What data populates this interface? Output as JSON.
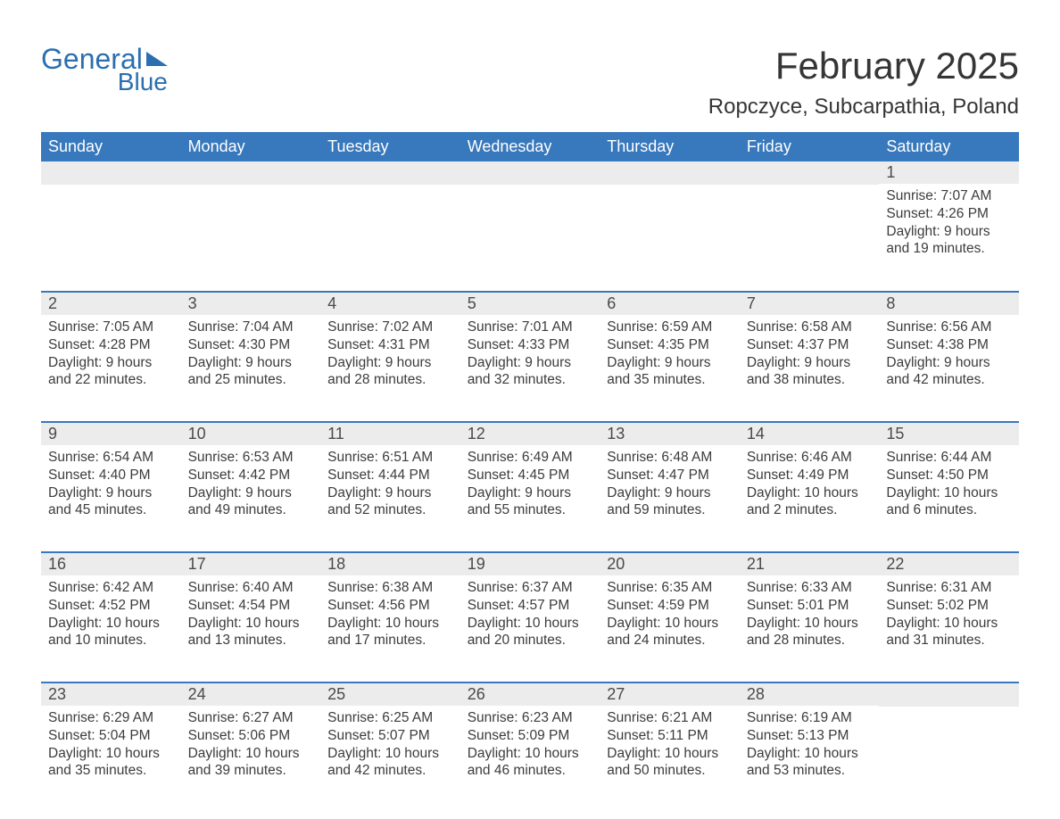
{
  "logo": {
    "general": "General",
    "blue": "Blue"
  },
  "title": "February 2025",
  "location": "Ropczyce, Subcarpathia, Poland",
  "colors": {
    "header_bg": "#3878bc",
    "header_text": "#ffffff",
    "daynum_bg": "#ececec",
    "text": "#3c3c3c",
    "logo": "#2b6fb0"
  },
  "fonts": {
    "title_size": 42,
    "location_size": 24,
    "header_size": 18,
    "daynum_size": 18,
    "body_size": 15.5
  },
  "weekdays": [
    "Sunday",
    "Monday",
    "Tuesday",
    "Wednesday",
    "Thursday",
    "Friday",
    "Saturday"
  ],
  "weeks": [
    [
      null,
      null,
      null,
      null,
      null,
      null,
      {
        "n": "1",
        "sr": "Sunrise: 7:07 AM",
        "ss": "Sunset: 4:26 PM",
        "dl1": "Daylight: 9 hours",
        "dl2": "and 19 minutes."
      }
    ],
    [
      {
        "n": "2",
        "sr": "Sunrise: 7:05 AM",
        "ss": "Sunset: 4:28 PM",
        "dl1": "Daylight: 9 hours",
        "dl2": "and 22 minutes."
      },
      {
        "n": "3",
        "sr": "Sunrise: 7:04 AM",
        "ss": "Sunset: 4:30 PM",
        "dl1": "Daylight: 9 hours",
        "dl2": "and 25 minutes."
      },
      {
        "n": "4",
        "sr": "Sunrise: 7:02 AM",
        "ss": "Sunset: 4:31 PM",
        "dl1": "Daylight: 9 hours",
        "dl2": "and 28 minutes."
      },
      {
        "n": "5",
        "sr": "Sunrise: 7:01 AM",
        "ss": "Sunset: 4:33 PM",
        "dl1": "Daylight: 9 hours",
        "dl2": "and 32 minutes."
      },
      {
        "n": "6",
        "sr": "Sunrise: 6:59 AM",
        "ss": "Sunset: 4:35 PM",
        "dl1": "Daylight: 9 hours",
        "dl2": "and 35 minutes."
      },
      {
        "n": "7",
        "sr": "Sunrise: 6:58 AM",
        "ss": "Sunset: 4:37 PM",
        "dl1": "Daylight: 9 hours",
        "dl2": "and 38 minutes."
      },
      {
        "n": "8",
        "sr": "Sunrise: 6:56 AM",
        "ss": "Sunset: 4:38 PM",
        "dl1": "Daylight: 9 hours",
        "dl2": "and 42 minutes."
      }
    ],
    [
      {
        "n": "9",
        "sr": "Sunrise: 6:54 AM",
        "ss": "Sunset: 4:40 PM",
        "dl1": "Daylight: 9 hours",
        "dl2": "and 45 minutes."
      },
      {
        "n": "10",
        "sr": "Sunrise: 6:53 AM",
        "ss": "Sunset: 4:42 PM",
        "dl1": "Daylight: 9 hours",
        "dl2": "and 49 minutes."
      },
      {
        "n": "11",
        "sr": "Sunrise: 6:51 AM",
        "ss": "Sunset: 4:44 PM",
        "dl1": "Daylight: 9 hours",
        "dl2": "and 52 minutes."
      },
      {
        "n": "12",
        "sr": "Sunrise: 6:49 AM",
        "ss": "Sunset: 4:45 PM",
        "dl1": "Daylight: 9 hours",
        "dl2": "and 55 minutes."
      },
      {
        "n": "13",
        "sr": "Sunrise: 6:48 AM",
        "ss": "Sunset: 4:47 PM",
        "dl1": "Daylight: 9 hours",
        "dl2": "and 59 minutes."
      },
      {
        "n": "14",
        "sr": "Sunrise: 6:46 AM",
        "ss": "Sunset: 4:49 PM",
        "dl1": "Daylight: 10 hours",
        "dl2": "and 2 minutes."
      },
      {
        "n": "15",
        "sr": "Sunrise: 6:44 AM",
        "ss": "Sunset: 4:50 PM",
        "dl1": "Daylight: 10 hours",
        "dl2": "and 6 minutes."
      }
    ],
    [
      {
        "n": "16",
        "sr": "Sunrise: 6:42 AM",
        "ss": "Sunset: 4:52 PM",
        "dl1": "Daylight: 10 hours",
        "dl2": "and 10 minutes."
      },
      {
        "n": "17",
        "sr": "Sunrise: 6:40 AM",
        "ss": "Sunset: 4:54 PM",
        "dl1": "Daylight: 10 hours",
        "dl2": "and 13 minutes."
      },
      {
        "n": "18",
        "sr": "Sunrise: 6:38 AM",
        "ss": "Sunset: 4:56 PM",
        "dl1": "Daylight: 10 hours",
        "dl2": "and 17 minutes."
      },
      {
        "n": "19",
        "sr": "Sunrise: 6:37 AM",
        "ss": "Sunset: 4:57 PM",
        "dl1": "Daylight: 10 hours",
        "dl2": "and 20 minutes."
      },
      {
        "n": "20",
        "sr": "Sunrise: 6:35 AM",
        "ss": "Sunset: 4:59 PM",
        "dl1": "Daylight: 10 hours",
        "dl2": "and 24 minutes."
      },
      {
        "n": "21",
        "sr": "Sunrise: 6:33 AM",
        "ss": "Sunset: 5:01 PM",
        "dl1": "Daylight: 10 hours",
        "dl2": "and 28 minutes."
      },
      {
        "n": "22",
        "sr": "Sunrise: 6:31 AM",
        "ss": "Sunset: 5:02 PM",
        "dl1": "Daylight: 10 hours",
        "dl2": "and 31 minutes."
      }
    ],
    [
      {
        "n": "23",
        "sr": "Sunrise: 6:29 AM",
        "ss": "Sunset: 5:04 PM",
        "dl1": "Daylight: 10 hours",
        "dl2": "and 35 minutes."
      },
      {
        "n": "24",
        "sr": "Sunrise: 6:27 AM",
        "ss": "Sunset: 5:06 PM",
        "dl1": "Daylight: 10 hours",
        "dl2": "and 39 minutes."
      },
      {
        "n": "25",
        "sr": "Sunrise: 6:25 AM",
        "ss": "Sunset: 5:07 PM",
        "dl1": "Daylight: 10 hours",
        "dl2": "and 42 minutes."
      },
      {
        "n": "26",
        "sr": "Sunrise: 6:23 AM",
        "ss": "Sunset: 5:09 PM",
        "dl1": "Daylight: 10 hours",
        "dl2": "and 46 minutes."
      },
      {
        "n": "27",
        "sr": "Sunrise: 6:21 AM",
        "ss": "Sunset: 5:11 PM",
        "dl1": "Daylight: 10 hours",
        "dl2": "and 50 minutes."
      },
      {
        "n": "28",
        "sr": "Sunrise: 6:19 AM",
        "ss": "Sunset: 5:13 PM",
        "dl1": "Daylight: 10 hours",
        "dl2": "and 53 minutes."
      },
      null
    ]
  ]
}
